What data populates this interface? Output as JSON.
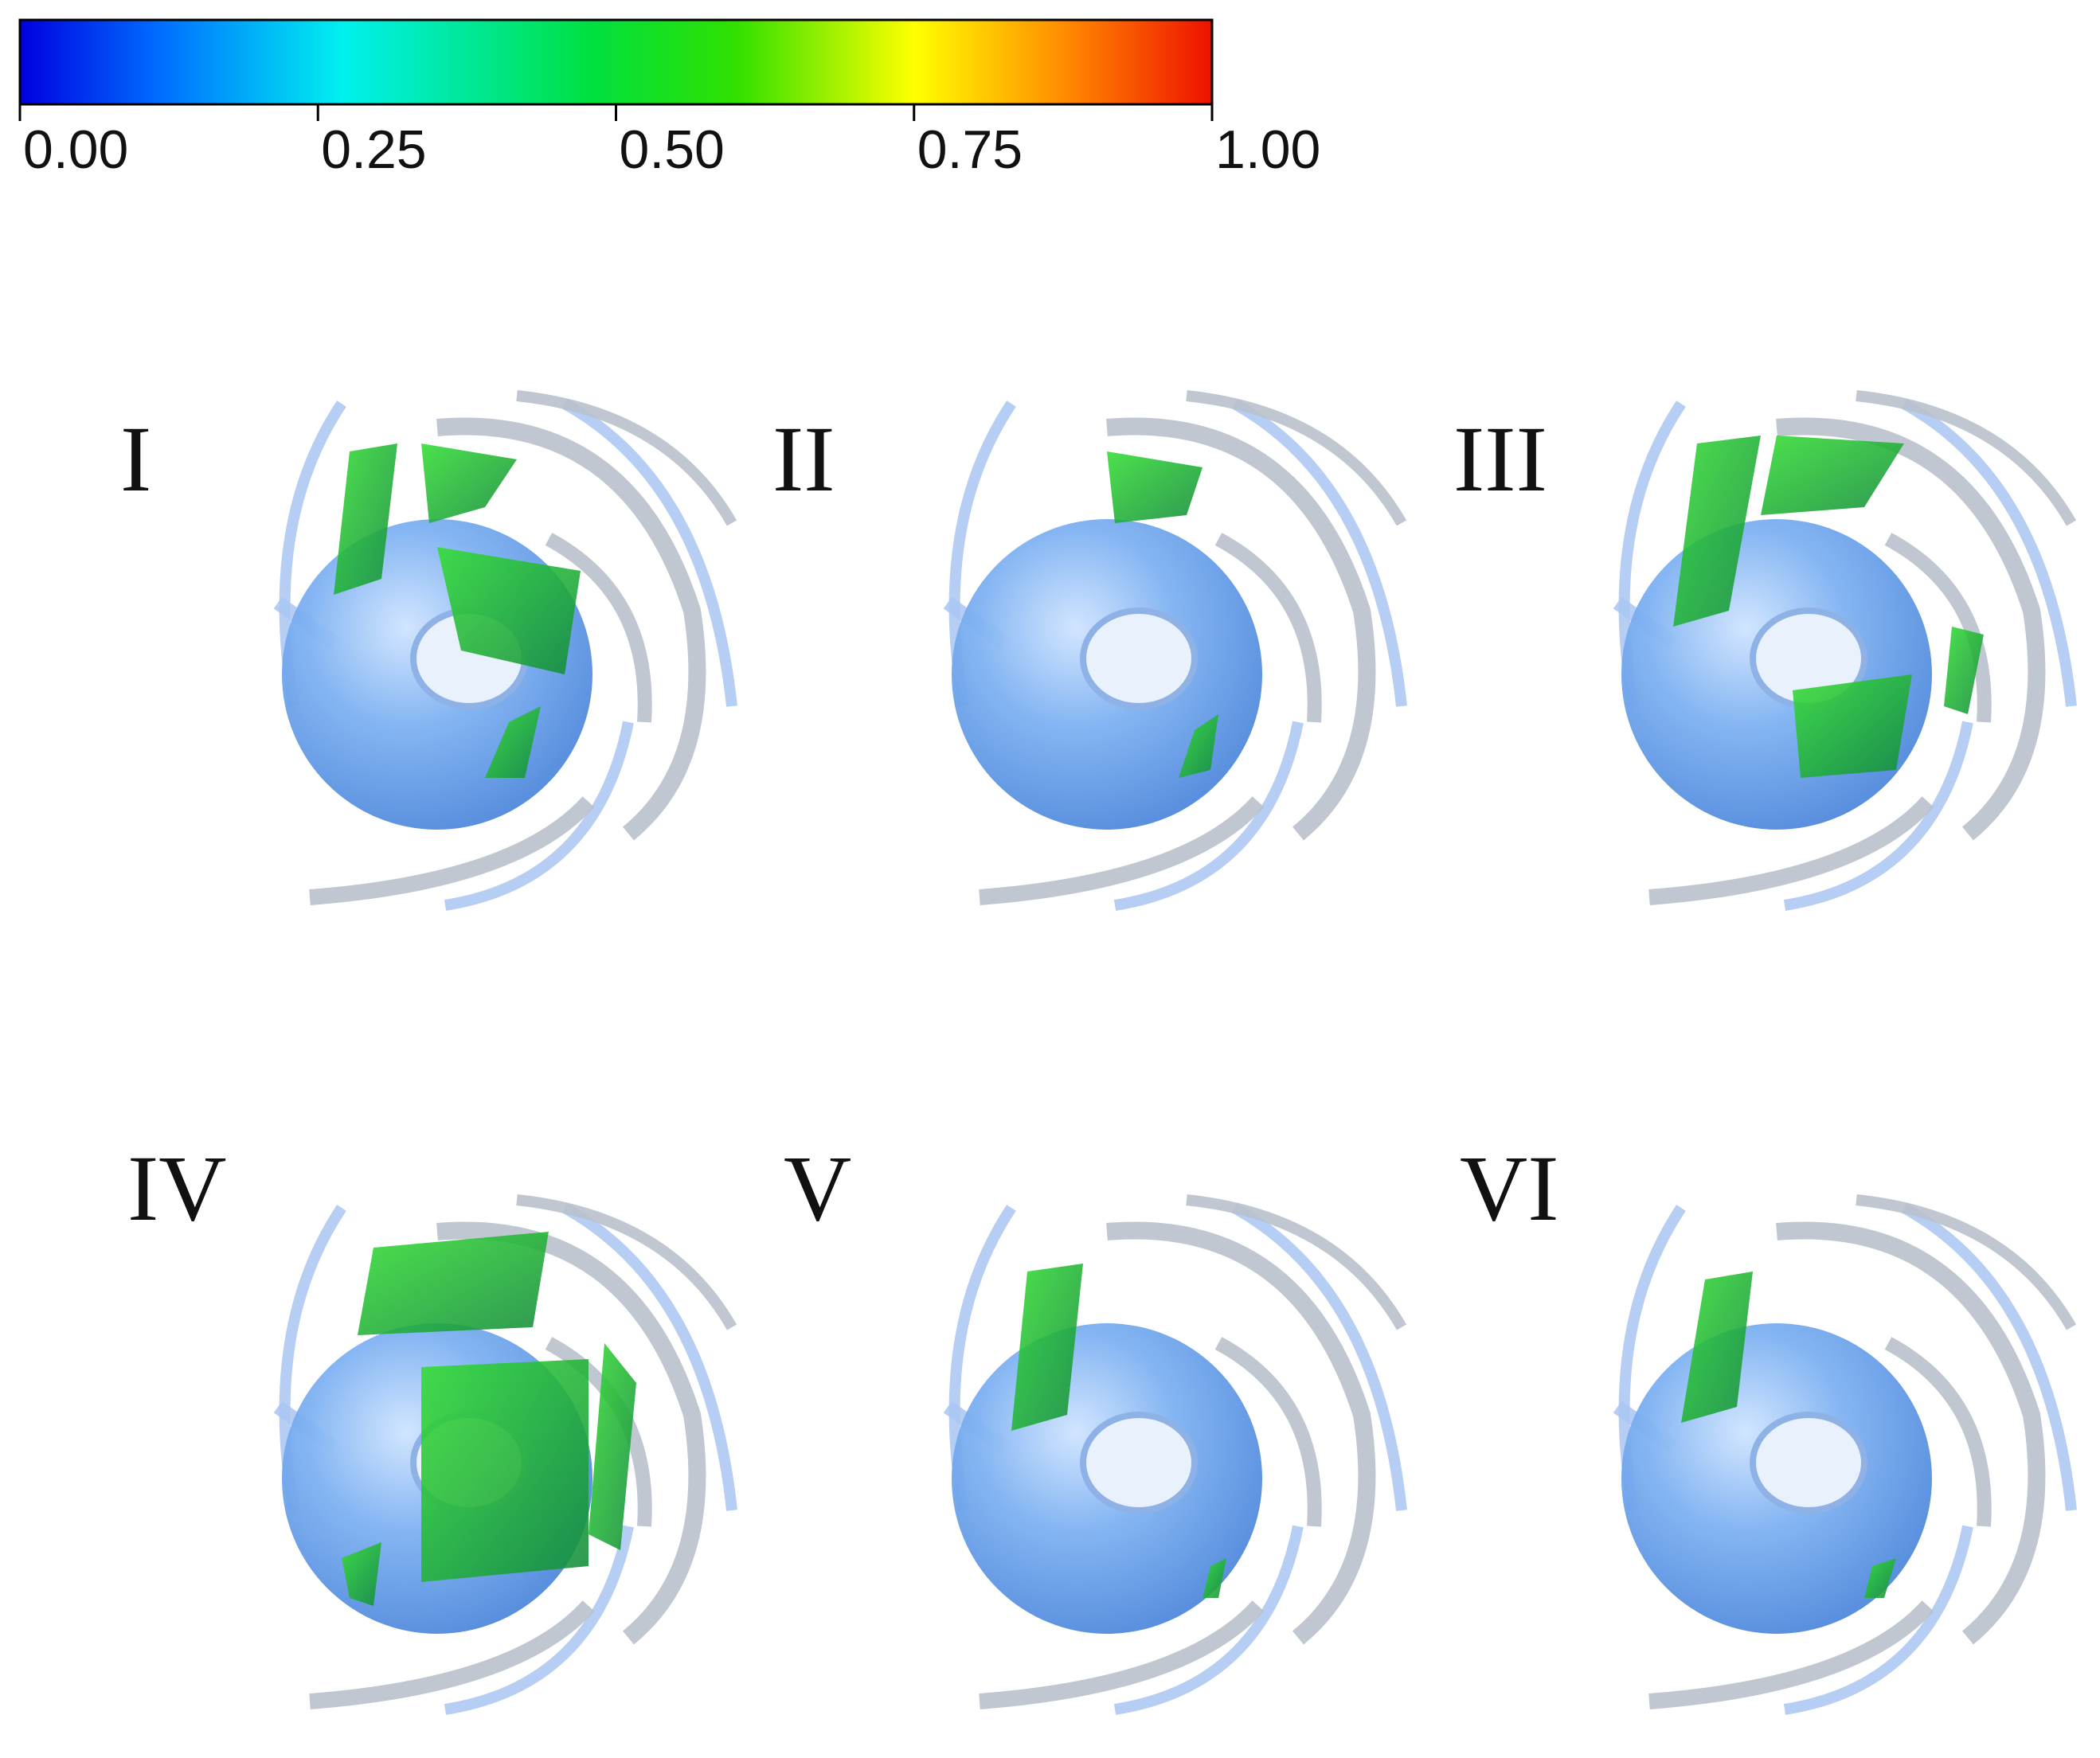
{
  "colorbar": {
    "range": [
      0,
      1
    ],
    "ticks": [
      {
        "value": 0,
        "label": "0.00"
      },
      {
        "value": 0.25,
        "label": "0.25"
      },
      {
        "value": 0.5,
        "label": "0.50"
      },
      {
        "value": 0.75,
        "label": "0.75"
      },
      {
        "value": 1,
        "label": "1.00"
      }
    ]
  },
  "panels": [
    {
      "label": "I"
    },
    {
      "label": "II"
    },
    {
      "label": "III"
    },
    {
      "label": "IV"
    },
    {
      "label": "V"
    },
    {
      "label": "VI"
    }
  ]
}
